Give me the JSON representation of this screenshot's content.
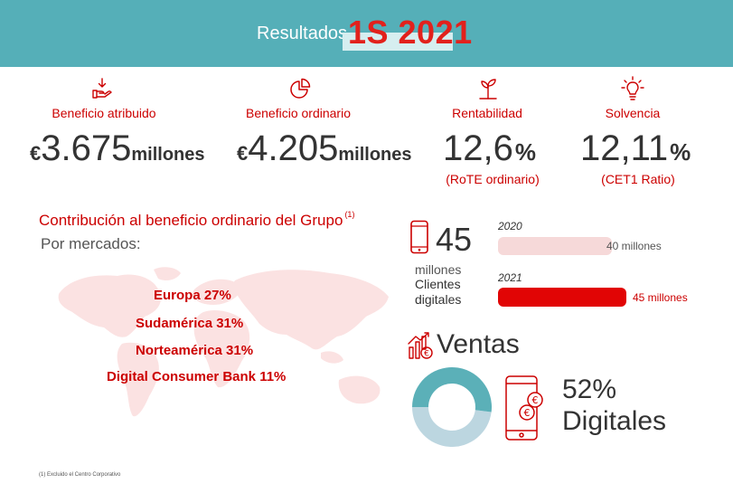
{
  "header": {
    "label": "Resultados",
    "period": "1S 2021",
    "bg_color": "#55afb8",
    "accent_color": "#e2211c"
  },
  "kpis": [
    {
      "icon": "hand-arrow-icon",
      "label": "Beneficio atribuido",
      "currency": "€",
      "value": "3.675",
      "unit": "millones"
    },
    {
      "icon": "pie-chart-icon",
      "label": "Beneficio ordinario",
      "currency": "€",
      "value": "4.205",
      "unit": "millones"
    },
    {
      "icon": "plant-icon",
      "label": "Rentabilidad",
      "value": "12,6",
      "unit": "%",
      "sub": "(RoTE ordinario)"
    },
    {
      "icon": "lightbulb-icon",
      "label": "Solvencia",
      "value": "12,11",
      "unit": "%",
      "sub": "(CET1 Ratio)"
    }
  ],
  "contribution": {
    "title": "Contribución al beneficio ordinario del Grupo",
    "note_ref": "(1)",
    "subtitle": "Por mercados:",
    "markets": [
      {
        "label": "Europa 27%"
      },
      {
        "label": "Sudamérica 31%"
      },
      {
        "label": "Norteamérica 31%"
      },
      {
        "label": "Digital Consumer Bank 11%"
      }
    ]
  },
  "digital_clients": {
    "icon": "mobile-phone-icon",
    "value": "45",
    "unit": "millones",
    "label": "Clientes digitales",
    "bars": [
      {
        "year": "2020",
        "value": 40,
        "label": "40 millones",
        "color": "#f6d9d9"
      },
      {
        "year": "2021",
        "value": 45,
        "label": "45 millones",
        "color": "#e10505"
      }
    ]
  },
  "sales": {
    "icon": "chart-euro-icon",
    "title": "Ventas",
    "digital_share": 52,
    "pct_label": "52%",
    "digital_label": "Digitales",
    "colors": {
      "digital": "#5bb0b8",
      "other": "#bcd6e0"
    }
  },
  "footnote": "(1) Excluido el Centro Corporativo"
}
